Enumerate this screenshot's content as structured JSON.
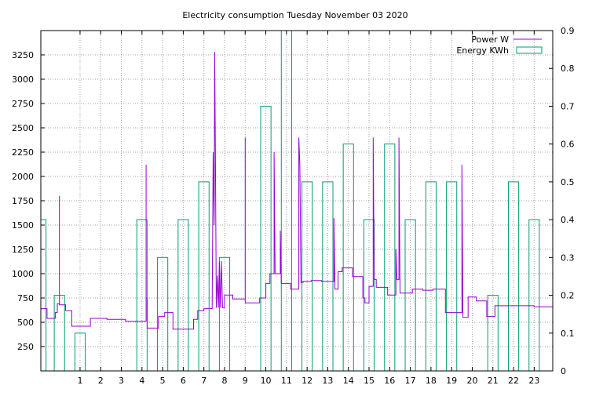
{
  "chart_data": {
    "type": "line",
    "title": "Electricity consumption Tuesday November 03 2020",
    "legend_position": "top-right",
    "grid": true,
    "x_axis": {
      "range": [
        -0.9,
        23.9
      ],
      "ticks": [
        1,
        2,
        3,
        4,
        5,
        6,
        7,
        8,
        9,
        10,
        11,
        12,
        13,
        14,
        15,
        16,
        17,
        18,
        19,
        20,
        21,
        22,
        23
      ],
      "tick_labels": [
        "1",
        "2",
        "3",
        "4",
        "5",
        "6",
        "7",
        "8",
        "9",
        "10",
        "11",
        "12",
        "13",
        "14",
        "15",
        "16",
        "17",
        "18",
        "19",
        "20",
        "21",
        "22",
        "23"
      ]
    },
    "y_axis_left": {
      "range": [
        0,
        3500
      ],
      "ticks": [
        250,
        500,
        750,
        1000,
        1250,
        1500,
        1750,
        2000,
        2250,
        2500,
        2750,
        3000,
        3250
      ],
      "tick_labels": [
        "250",
        "500",
        "750",
        "1000",
        "1250",
        "1500",
        "1750",
        "2000",
        "2250",
        "2500",
        "2750",
        "3000",
        "3250"
      ]
    },
    "y_axis_right": {
      "range": [
        0,
        0.9
      ],
      "ticks": [
        0,
        0.1,
        0.2,
        0.3,
        0.4,
        0.5,
        0.6,
        0.7,
        0.8,
        0.9
      ],
      "tick_labels": [
        "0",
        "0.1",
        "0.2",
        "0.3",
        "0.4",
        "0.5",
        "0.6",
        "0.7",
        "0.8",
        "0.9"
      ]
    },
    "series": [
      {
        "name": "Power W",
        "type": "line",
        "axis": "left",
        "color": "#9400d3",
        "points": [
          [
            -0.9,
            640
          ],
          [
            -0.6,
            640
          ],
          [
            -0.6,
            540
          ],
          [
            -0.2,
            540
          ],
          [
            -0.2,
            600
          ],
          [
            -0.1,
            600
          ],
          [
            -0.1,
            690
          ],
          [
            0.0,
            690
          ],
          [
            0.0,
            1800
          ],
          [
            0.0,
            680
          ],
          [
            0.3,
            680
          ],
          [
            0.3,
            620
          ],
          [
            0.6,
            620
          ],
          [
            0.6,
            460
          ],
          [
            1.5,
            460
          ],
          [
            1.5,
            540
          ],
          [
            2.3,
            540
          ],
          [
            2.3,
            530
          ],
          [
            3.2,
            530
          ],
          [
            3.2,
            510
          ],
          [
            4.2,
            510
          ],
          [
            4.2,
            2120
          ],
          [
            4.2,
            750
          ],
          [
            4.25,
            750
          ],
          [
            4.25,
            440
          ],
          [
            4.8,
            440
          ],
          [
            4.8,
            560
          ],
          [
            5.1,
            560
          ],
          [
            5.1,
            600
          ],
          [
            5.5,
            600
          ],
          [
            5.5,
            430
          ],
          [
            6.5,
            430
          ],
          [
            6.5,
            530
          ],
          [
            6.7,
            530
          ],
          [
            6.7,
            620
          ],
          [
            7.0,
            620
          ],
          [
            7.0,
            640
          ],
          [
            7.4,
            640
          ],
          [
            7.45,
            2250
          ],
          [
            7.5,
            1500
          ],
          [
            7.52,
            3280
          ],
          [
            7.55,
            2400
          ],
          [
            7.6,
            650
          ],
          [
            7.65,
            980
          ],
          [
            7.7,
            650
          ],
          [
            7.75,
            1130
          ],
          [
            7.8,
            650
          ],
          [
            7.85,
            1130
          ],
          [
            7.9,
            650
          ],
          [
            8.0,
            650
          ],
          [
            8.0,
            780
          ],
          [
            8.4,
            780
          ],
          [
            8.4,
            740
          ],
          [
            9.0,
            740
          ],
          [
            9.0,
            2400
          ],
          [
            9.0,
            700
          ],
          [
            9.7,
            700
          ],
          [
            9.7,
            750
          ],
          [
            10.0,
            750
          ],
          [
            10.0,
            900
          ],
          [
            10.2,
            900
          ],
          [
            10.2,
            1000
          ],
          [
            10.4,
            1000
          ],
          [
            10.4,
            2250
          ],
          [
            10.45,
            1000
          ],
          [
            10.7,
            1000
          ],
          [
            10.7,
            1440
          ],
          [
            10.75,
            900
          ],
          [
            11.2,
            900
          ],
          [
            11.2,
            840
          ],
          [
            11.6,
            840
          ],
          [
            11.6,
            2400
          ],
          [
            11.65,
            2120
          ],
          [
            11.7,
            910
          ],
          [
            11.8,
            910
          ],
          [
            11.8,
            920
          ],
          [
            12.2,
            920
          ],
          [
            12.2,
            930
          ],
          [
            12.7,
            930
          ],
          [
            12.7,
            920
          ],
          [
            13.3,
            920
          ],
          [
            13.3,
            1570
          ],
          [
            13.35,
            840
          ],
          [
            13.5,
            840
          ],
          [
            13.5,
            1020
          ],
          [
            13.7,
            1020
          ],
          [
            13.7,
            1060
          ],
          [
            14.2,
            1060
          ],
          [
            14.2,
            970
          ],
          [
            14.7,
            970
          ],
          [
            14.7,
            750
          ],
          [
            14.8,
            750
          ],
          [
            14.8,
            700
          ],
          [
            15.0,
            700
          ],
          [
            15.0,
            870
          ],
          [
            15.2,
            870
          ],
          [
            15.2,
            2400
          ],
          [
            15.25,
            940
          ],
          [
            15.35,
            940
          ],
          [
            15.35,
            860
          ],
          [
            15.9,
            860
          ],
          [
            15.9,
            780
          ],
          [
            16.3,
            780
          ],
          [
            16.3,
            1250
          ],
          [
            16.35,
            940
          ],
          [
            16.45,
            940
          ],
          [
            16.45,
            2400
          ],
          [
            16.5,
            800
          ],
          [
            17.1,
            800
          ],
          [
            17.1,
            840
          ],
          [
            17.6,
            840
          ],
          [
            17.6,
            830
          ],
          [
            18.1,
            830
          ],
          [
            18.1,
            840
          ],
          [
            18.7,
            840
          ],
          [
            18.7,
            600
          ],
          [
            19.5,
            600
          ],
          [
            19.5,
            2120
          ],
          [
            19.55,
            550
          ],
          [
            19.8,
            550
          ],
          [
            19.8,
            760
          ],
          [
            20.2,
            760
          ],
          [
            20.2,
            720
          ],
          [
            20.7,
            720
          ],
          [
            20.7,
            560
          ],
          [
            21.1,
            560
          ],
          [
            21.1,
            670
          ],
          [
            22.0,
            670
          ],
          [
            22.0,
            670
          ],
          [
            23.0,
            670
          ],
          [
            23.0,
            660
          ],
          [
            23.9,
            660
          ]
        ]
      },
      {
        "name": "Energy KWh",
        "type": "bar",
        "axis": "right",
        "color": "#009e73",
        "bar_width": 0.5,
        "values": [
          [
            -0.9,
            0.4
          ],
          [
            0.0,
            0.2
          ],
          [
            1.0,
            0.1
          ],
          [
            4.0,
            0.4
          ],
          [
            5.0,
            0.3
          ],
          [
            6.0,
            0.4
          ],
          [
            7.0,
            0.5
          ],
          [
            8.0,
            0.3
          ],
          [
            10.0,
            0.7
          ],
          [
            11.0,
            0.9
          ],
          [
            12.0,
            0.5
          ],
          [
            13.0,
            0.5
          ],
          [
            14.0,
            0.6
          ],
          [
            15.0,
            0.4
          ],
          [
            16.0,
            0.6
          ],
          [
            17.0,
            0.4
          ],
          [
            18.0,
            0.5
          ],
          [
            19.0,
            0.5
          ],
          [
            21.0,
            0.2
          ],
          [
            22.0,
            0.5
          ],
          [
            23.0,
            0.4
          ]
        ]
      }
    ]
  }
}
